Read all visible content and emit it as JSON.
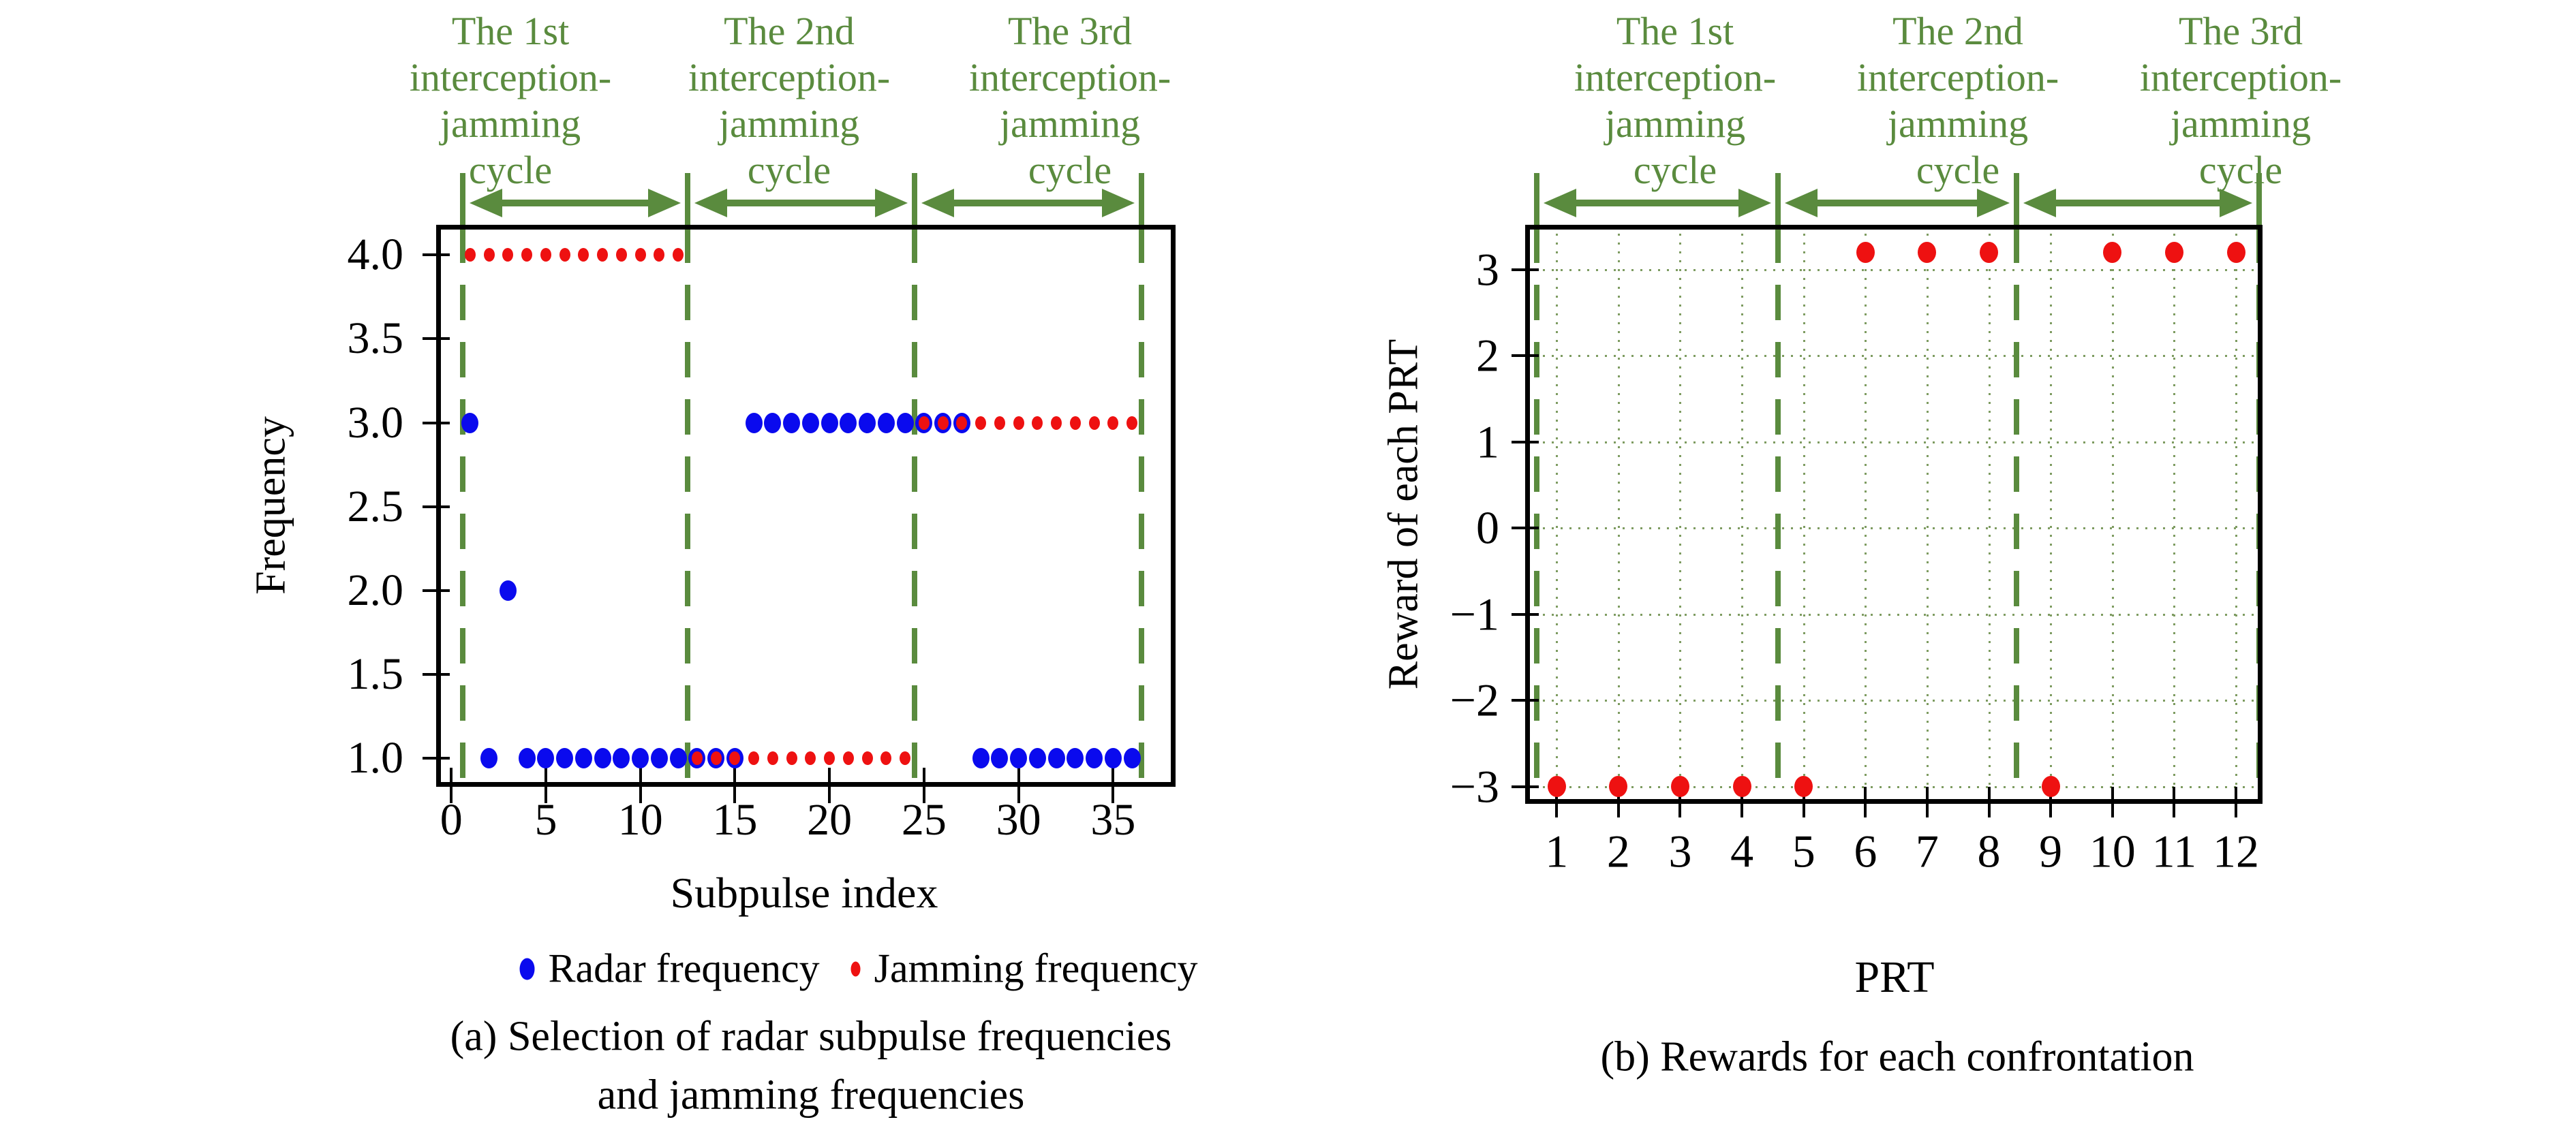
{
  "colors": {
    "green": "#5a8b3e",
    "grid": "#7d9b60",
    "blue": "#0a0aee",
    "red": "#ee1111",
    "axis": "#000000"
  },
  "cycle_labels": [
    [
      "The 1st",
      "interception-",
      "jamming",
      "cycle"
    ],
    [
      "The 2nd",
      "interception-",
      "jamming",
      "cycle"
    ],
    [
      "The 3rd",
      "interception-",
      "jamming",
      "cycle"
    ]
  ],
  "legend": {
    "radar_label": "Radar frequency",
    "jamming_label": "Jamming frequency"
  },
  "chart_data": [
    {
      "id": "a",
      "type": "scatter",
      "xlabel": "Subpulse index",
      "ylabel": "Frequency",
      "xlim": [
        -0.8,
        38.3
      ],
      "ylim": [
        0.83,
        4.18
      ],
      "grid": false,
      "xticks": [
        {
          "v": 0,
          "label": "0"
        },
        {
          "v": 5,
          "label": "5"
        },
        {
          "v": 10,
          "label": "10"
        },
        {
          "v": 15,
          "label": "15"
        },
        {
          "v": 20,
          "label": "20"
        },
        {
          "v": 25,
          "label": "25"
        },
        {
          "v": 30,
          "label": "30"
        },
        {
          "v": 35,
          "label": "35"
        }
      ],
      "yticks": [
        {
          "v": 4.0,
          "label": "4.0"
        },
        {
          "v": 3.5,
          "label": "3.5"
        },
        {
          "v": 3.0,
          "label": "3.0"
        },
        {
          "v": 2.5,
          "label": "2.5"
        },
        {
          "v": 2.0,
          "label": "2.0"
        },
        {
          "v": 1.5,
          "label": "1.5"
        },
        {
          "v": 1.0,
          "label": "1.0"
        }
      ],
      "cycle_boundaries": [
        0.6,
        12.5,
        24.5,
        36.5
      ],
      "series": [
        {
          "name": "Radar frequency",
          "color": "#0a0aee",
          "marker_w": 25,
          "marker_h": 30,
          "points": [
            [
              1,
              3
            ],
            [
              2,
              1
            ],
            [
              3,
              2
            ],
            [
              4,
              1
            ],
            [
              5,
              1
            ],
            [
              6,
              1
            ],
            [
              7,
              1
            ],
            [
              8,
              1
            ],
            [
              9,
              1
            ],
            [
              10,
              1
            ],
            [
              11,
              1
            ],
            [
              12,
              1
            ],
            [
              13,
              1
            ],
            [
              14,
              1
            ],
            [
              15,
              1
            ],
            [
              16,
              3
            ],
            [
              17,
              3
            ],
            [
              18,
              3
            ],
            [
              19,
              3
            ],
            [
              20,
              3
            ],
            [
              21,
              3
            ],
            [
              22,
              3
            ],
            [
              23,
              3
            ],
            [
              24,
              3
            ],
            [
              25,
              3
            ],
            [
              26,
              3
            ],
            [
              27,
              3
            ],
            [
              28,
              1
            ],
            [
              29,
              1
            ],
            [
              30,
              1
            ],
            [
              31,
              1
            ],
            [
              32,
              1
            ],
            [
              33,
              1
            ],
            [
              34,
              1
            ],
            [
              35,
              1
            ],
            [
              36,
              1
            ]
          ]
        },
        {
          "name": "Jamming frequency",
          "color": "#ee1111",
          "marker_w": 16,
          "marker_h": 20,
          "points": [
            [
              1,
              4
            ],
            [
              2,
              4
            ],
            [
              3,
              4
            ],
            [
              4,
              4
            ],
            [
              5,
              4
            ],
            [
              6,
              4
            ],
            [
              7,
              4
            ],
            [
              8,
              4
            ],
            [
              9,
              4
            ],
            [
              10,
              4
            ],
            [
              11,
              4
            ],
            [
              12,
              4
            ],
            [
              13,
              1
            ],
            [
              14,
              1
            ],
            [
              15,
              1
            ],
            [
              16,
              1
            ],
            [
              17,
              1
            ],
            [
              18,
              1
            ],
            [
              19,
              1
            ],
            [
              20,
              1
            ],
            [
              21,
              1
            ],
            [
              22,
              1
            ],
            [
              23,
              1
            ],
            [
              24,
              1
            ],
            [
              25,
              3
            ],
            [
              26,
              3
            ],
            [
              27,
              3
            ],
            [
              28,
              3
            ],
            [
              29,
              3
            ],
            [
              30,
              3
            ],
            [
              31,
              3
            ],
            [
              32,
              3
            ],
            [
              33,
              3
            ],
            [
              34,
              3
            ],
            [
              35,
              3
            ],
            [
              36,
              3
            ]
          ]
        }
      ],
      "caption": [
        "(a) Selection of radar subpulse frequencies",
        "and jamming frequencies"
      ]
    },
    {
      "id": "b",
      "type": "scatter",
      "xlabel": "PRT",
      "ylabel": "Reward of each PRT",
      "xlim": [
        0.49,
        12.43
      ],
      "ylim": [
        -3.2,
        3.52
      ],
      "grid": true,
      "xticks": [
        {
          "v": 1,
          "label": "1"
        },
        {
          "v": 2,
          "label": "2"
        },
        {
          "v": 3,
          "label": "3"
        },
        {
          "v": 4,
          "label": "4"
        },
        {
          "v": 5,
          "label": "5"
        },
        {
          "v": 6,
          "label": "6"
        },
        {
          "v": 7,
          "label": "7"
        },
        {
          "v": 8,
          "label": "8"
        },
        {
          "v": 9,
          "label": "9"
        },
        {
          "v": 10,
          "label": "10"
        },
        {
          "v": 11,
          "label": "11"
        },
        {
          "v": 12,
          "label": "12"
        }
      ],
      "yticks": [
        {
          "v": 3,
          "label": "3"
        },
        {
          "v": 2,
          "label": "2"
        },
        {
          "v": 1,
          "label": "1"
        },
        {
          "v": 0,
          "label": "0"
        },
        {
          "v": -1,
          "label": "−1"
        },
        {
          "v": -2,
          "label": "−2"
        },
        {
          "v": -3,
          "label": "−3"
        }
      ],
      "cycle_boundaries": [
        0.68,
        4.58,
        8.45,
        12.38
      ],
      "series": [
        {
          "name": "Reward of each PRT",
          "color": "#ee1111",
          "marker_w": 27,
          "marker_h": 31,
          "points": [
            [
              1,
              -3
            ],
            [
              2,
              -3
            ],
            [
              3,
              -3
            ],
            [
              4,
              -3
            ],
            [
              5,
              -3
            ],
            [
              6,
              3.2
            ],
            [
              7,
              3.2
            ],
            [
              8,
              3.2
            ],
            [
              9,
              -3
            ],
            [
              10,
              3.2
            ],
            [
              11,
              3.2
            ],
            [
              12,
              3.2
            ]
          ]
        }
      ],
      "caption": [
        "(b) Rewards for each confrontation"
      ]
    }
  ]
}
